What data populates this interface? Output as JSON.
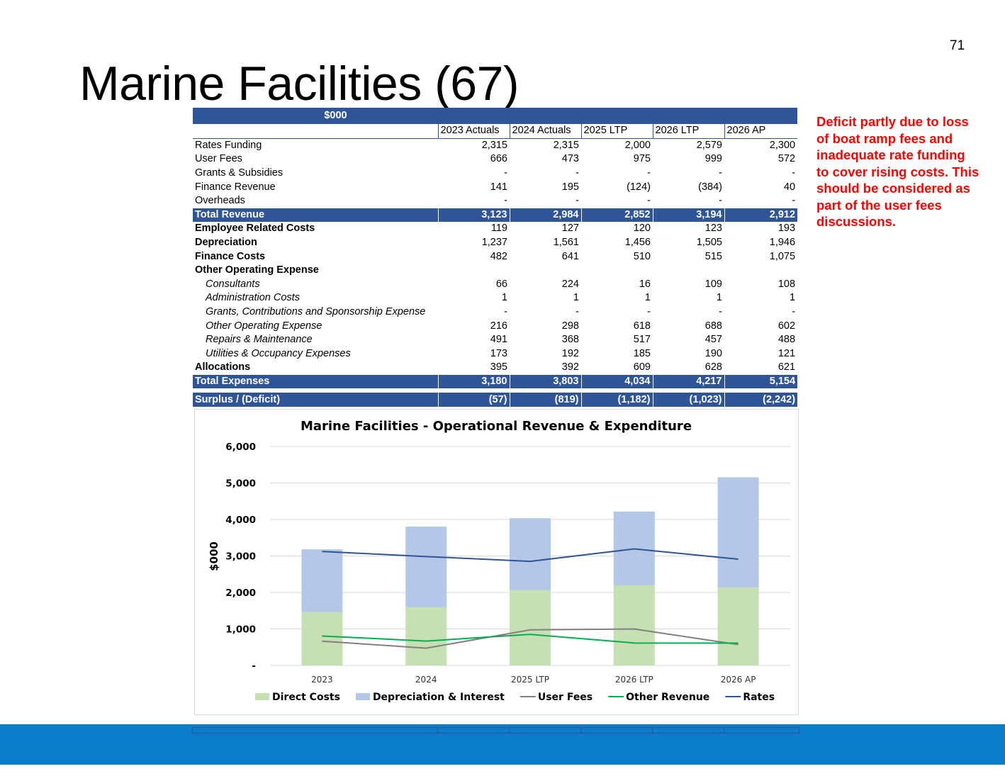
{
  "page_number": "71",
  "title": "Marine Facilities (67)",
  "note": "Deficit partly due to loss of boat ramp fees and inadequate rate funding to cover rising costs.   This should be considered as part of the user fees discussions.",
  "table": {
    "unit_label": "$000",
    "columns": [
      "2023 Actuals",
      "2024 Actuals",
      "2025 LTP",
      "2026 LTP",
      "2026 AP"
    ],
    "rows": [
      {
        "label": "Rates Funding",
        "values": [
          "2,315",
          "2,315",
          "2,000",
          "2,579",
          "2,300"
        ],
        "style": "normal"
      },
      {
        "label": "User Fees",
        "values": [
          "666",
          "473",
          "975",
          "999",
          "572"
        ],
        "style": "normal"
      },
      {
        "label": "Grants & Subsidies",
        "values": [
          "-",
          "-",
          "-",
          "-",
          "-"
        ],
        "style": "normal"
      },
      {
        "label": "Finance Revenue",
        "values": [
          "141",
          "195",
          "(124)",
          "(384)",
          "40"
        ],
        "style": "normal"
      },
      {
        "label": "Overheads",
        "values": [
          "-",
          "-",
          "-",
          "-",
          "-"
        ],
        "style": "normal"
      },
      {
        "label": "Total Revenue",
        "values": [
          "3,123",
          "2,984",
          "2,852",
          "3,194",
          "2,912"
        ],
        "style": "total"
      },
      {
        "label": "Employee Related Costs",
        "values": [
          "119",
          "127",
          "120",
          "123",
          "193"
        ],
        "style": "bold"
      },
      {
        "label": "Depreciation",
        "values": [
          "1,237",
          "1,561",
          "1,456",
          "1,505",
          "1,946"
        ],
        "style": "bold"
      },
      {
        "label": "Finance Costs",
        "values": [
          "482",
          "641",
          "510",
          "515",
          "1,075"
        ],
        "style": "bold"
      },
      {
        "label": "Other Operating  Expense",
        "values": [
          "",
          "",
          "",
          "",
          ""
        ],
        "style": "bold"
      },
      {
        "label": "Consultants",
        "values": [
          "66",
          "224",
          "16",
          "109",
          "108"
        ],
        "style": "sub"
      },
      {
        "label": "Administration Costs",
        "values": [
          "1",
          "1",
          "1",
          "1",
          "1"
        ],
        "style": "sub"
      },
      {
        "label": "Grants, Contributions and Sponsorship Expense",
        "values": [
          "-",
          "-",
          "-",
          "-",
          "-"
        ],
        "style": "sub"
      },
      {
        "label": "Other Operating Expense",
        "values": [
          "216",
          "298",
          "618",
          "688",
          "602"
        ],
        "style": "sub"
      },
      {
        "label": "Repairs & Maintenance",
        "values": [
          "491",
          "368",
          "517",
          "457",
          "488"
        ],
        "style": "sub"
      },
      {
        "label": "Utilities & Occupancy Expenses",
        "values": [
          "173",
          "192",
          "185",
          "190",
          "121"
        ],
        "style": "sub"
      },
      {
        "label": "Allocations",
        "values": [
          "395",
          "392",
          "609",
          "628",
          "621"
        ],
        "style": "bold"
      },
      {
        "label": "Total Expenses",
        "values": [
          "3,180",
          "3,803",
          "4,034",
          "4,217",
          "5,154"
        ],
        "style": "total"
      },
      {
        "label": "",
        "values": [
          "",
          "",
          "",
          "",
          ""
        ],
        "style": "gap"
      },
      {
        "label": "Surplus / (Deficit)",
        "values": [
          "(57)",
          "(819)",
          "(1,182)",
          "(1,023)",
          "(2,242)"
        ],
        "style": "total"
      }
    ]
  },
  "colors": {
    "table_header": "#2f5597",
    "note_text": "#ff0000",
    "footer_bar": "#0a7cc9",
    "direct_costs": "#c6e0b4",
    "depreciation_interest": "#b4c7e7",
    "user_fees": "#808080",
    "other_revenue": "#00b050",
    "rates": "#2f5597"
  },
  "chart_data": {
    "type": "bar",
    "title": "Marine Facilities - Operational Revenue & Expenditure",
    "ylabel": "$000",
    "xlabel": "",
    "categories": [
      "2023",
      "2024",
      "2025 LTP",
      "2026 LTP",
      "2026 AP"
    ],
    "y_ticks": [
      "-",
      "1,000",
      "2,000",
      "3,000",
      "4,000",
      "5,000",
      "6,000"
    ],
    "ylim": [
      0,
      6000
    ],
    "grid": true,
    "legend_position": "bottom",
    "stacked": true,
    "series": [
      {
        "name": "Direct Costs",
        "type": "bar",
        "color": "#c6e0b4",
        "values": [
          1461,
          1602,
          2068,
          2197,
          2133
        ]
      },
      {
        "name": "Depreciation & Interest",
        "type": "bar",
        "color": "#b4c7e7",
        "values": [
          1719,
          2201,
          1966,
          2020,
          3021
        ]
      },
      {
        "name": "User Fees",
        "type": "line",
        "color": "#808080",
        "values": [
          666,
          473,
          975,
          999,
          572
        ]
      },
      {
        "name": "Other Revenue",
        "type": "line",
        "color": "#00b050",
        "values": [
          807,
          668,
          851,
          615,
          612
        ]
      },
      {
        "name": "Rates",
        "type": "line",
        "color": "#2f5597",
        "values": [
          3123,
          2984,
          2852,
          3194,
          2912
        ]
      }
    ]
  }
}
